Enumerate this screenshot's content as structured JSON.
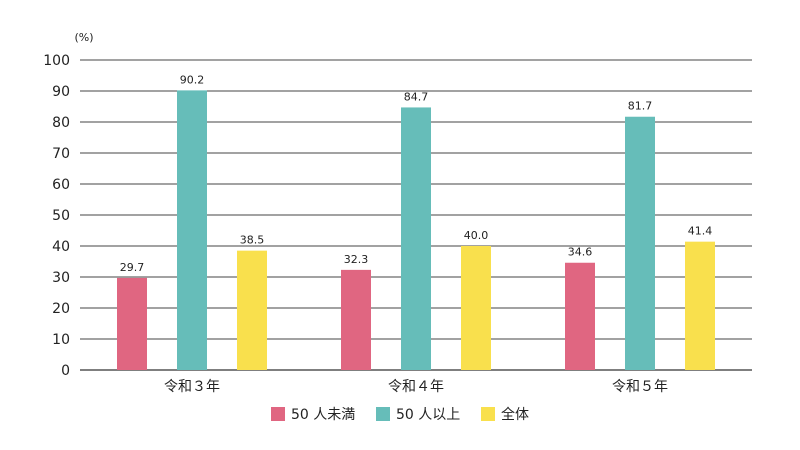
{
  "chart_data": {
    "type": "bar",
    "title": "",
    "xlabel": "",
    "ylabel": "",
    "unit": "(%)",
    "categories": [
      "令和３年",
      "令和４年",
      "令和５年"
    ],
    "ylim": [
      0,
      100
    ],
    "yticks": [
      0,
      10,
      20,
      30,
      40,
      50,
      60,
      70,
      80,
      90,
      100
    ],
    "grid": true,
    "legend_position": "bottom",
    "series": [
      {
        "name": "50 人未満",
        "color": "#e06681",
        "values": [
          29.7,
          32.3,
          34.6
        ],
        "labels": [
          "29.7",
          "32.3",
          "34.6"
        ]
      },
      {
        "name": "50 人以上",
        "color": "#66bdb9",
        "values": [
          90.2,
          84.7,
          81.7
        ],
        "labels": [
          "90.2",
          "84.7",
          "81.7"
        ]
      },
      {
        "name": "全体",
        "color": "#f9e04d",
        "values": [
          38.5,
          40.0,
          41.4
        ],
        "labels": [
          "38.5",
          "40.0",
          "41.4"
        ]
      }
    ]
  }
}
